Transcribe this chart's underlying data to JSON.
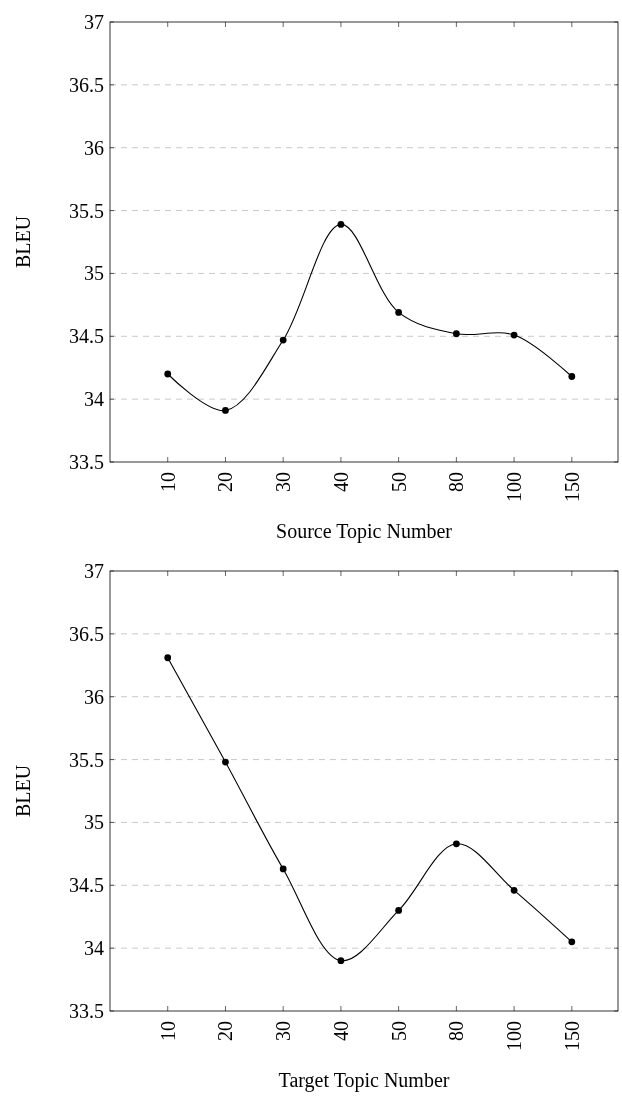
{
  "chart_data": [
    {
      "type": "line",
      "xlabel": "Source Topic Number",
      "ylabel": "BLEU",
      "categories": [
        "10",
        "20",
        "30",
        "40",
        "50",
        "80",
        "100",
        "150"
      ],
      "series": [
        {
          "color": "#000000",
          "values": [
            34.2,
            33.91,
            34.47,
            35.39,
            34.69,
            34.52,
            34.51,
            34.18
          ]
        }
      ],
      "ylim": [
        33.5,
        37
      ],
      "yticks": [
        33.5,
        34,
        34.5,
        35,
        35.5,
        36,
        36.5,
        37
      ],
      "grid": "y",
      "marker": "circle",
      "line_style": "solid"
    },
    {
      "type": "line",
      "xlabel": "Target Topic Number",
      "ylabel": "BLEU",
      "categories": [
        "10",
        "20",
        "30",
        "40",
        "50",
        "80",
        "100",
        "150"
      ],
      "series": [
        {
          "color": "#000000",
          "values": [
            36.31,
            35.48,
            34.63,
            33.9,
            34.3,
            34.83,
            34.46,
            34.05
          ]
        }
      ],
      "ylim": [
        33.5,
        37
      ],
      "yticks": [
        33.5,
        34,
        34.5,
        35,
        35.5,
        36,
        36.5,
        37
      ],
      "grid": "y",
      "marker": "circle",
      "line_style": "solid"
    }
  ]
}
